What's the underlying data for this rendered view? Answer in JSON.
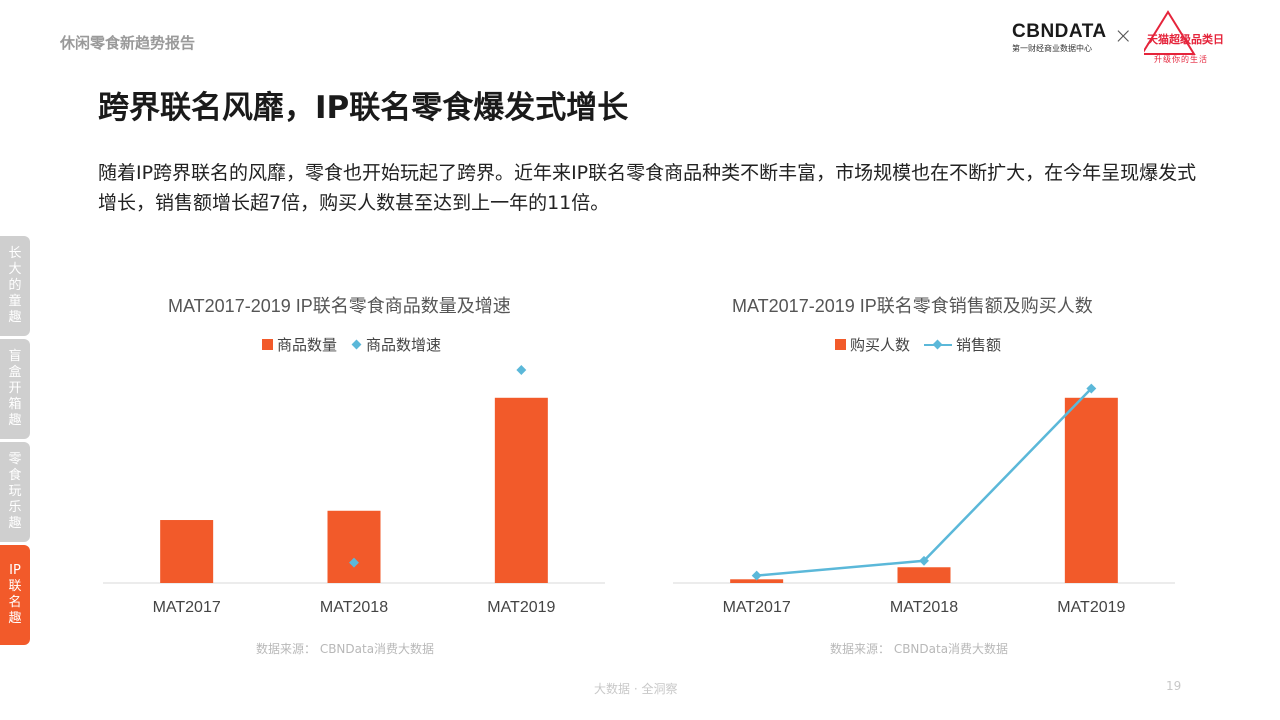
{
  "header": {
    "report_name": "休闲零食新趋势报告",
    "cbn_logo_text": "CBNDATA",
    "cbn_logo_subtext": "第一财经商业数据中心",
    "tmall_logo_text": "天猫超级品类日",
    "tmall_logo_subtext": "升级你的生活"
  },
  "page": {
    "title": "跨界联名风靡，IP联名零食爆发式增长",
    "description": "随着IP跨界联名的风靡，零食也开始玩起了跨界。近年来IP联名零食商品种类不断丰富，市场规模也在不断扩大，在今年呈现爆发式增长，销售额增长超7倍，购买人数甚至达到上一年的11倍。"
  },
  "side_tabs": [
    {
      "label": "长大的童趣",
      "active": false
    },
    {
      "label": "盲盒开箱趣",
      "active": false
    },
    {
      "label": "零食玩乐趣",
      "active": false
    },
    {
      "label": "IP联名趣",
      "active": true
    }
  ],
  "colors": {
    "bar": "#f25a2a",
    "line": "#5bb8d9",
    "accent": "#f25a2a",
    "axis": "#d9d9d9"
  },
  "chart_data": [
    {
      "type": "bar",
      "title": "MAT2017-2019 IP联名零食商品数量及增速",
      "categories": [
        "MAT2017",
        "MAT2018",
        "MAT2019"
      ],
      "series": [
        {
          "name": "商品数量",
          "type": "bar",
          "values": [
            34,
            39,
            100
          ]
        },
        {
          "name": "商品数增速",
          "type": "scatter",
          "values": [
            null,
            11,
            115
          ]
        }
      ],
      "ylim": [
        0,
        115
      ],
      "grid": false,
      "legend": "top-center",
      "source": "数据来源： CBNData消费大数据"
    },
    {
      "type": "bar",
      "title": "MAT2017-2019 IP联名零食销售额及购买人数",
      "categories": [
        "MAT2017",
        "MAT2018",
        "MAT2019"
      ],
      "series": [
        {
          "name": "购买人数",
          "type": "bar",
          "values": [
            2,
            8.5,
            100
          ]
        },
        {
          "name": "销售额",
          "type": "line",
          "values": [
            4,
            12,
            105
          ]
        }
      ],
      "ylim": [
        0,
        115
      ],
      "grid": false,
      "legend": "top-center",
      "source": "数据来源： CBNData消费大数据"
    }
  ],
  "footer": {
    "tagline": "大数据 · 全洞察",
    "page_number": "19"
  }
}
